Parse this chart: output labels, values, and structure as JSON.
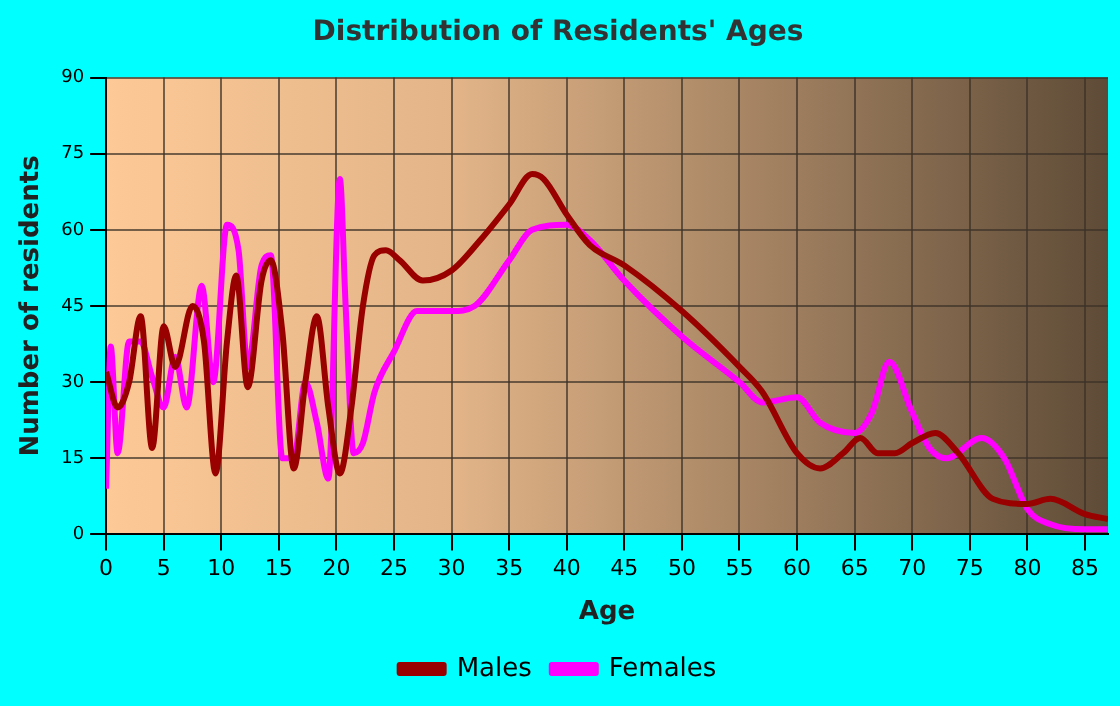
{
  "chart_data": {
    "type": "line",
    "title": "Distribution of Residents' Ages",
    "xlabel": "Age",
    "ylabel": "Number of residents",
    "xlim": [
      0,
      87
    ],
    "xticks": [
      0,
      5,
      10,
      15,
      20,
      25,
      30,
      35,
      40,
      45,
      50,
      55,
      60,
      65,
      70,
      75,
      80,
      85
    ],
    "ylim": [
      0,
      90
    ],
    "yticks": [
      0,
      15,
      30,
      45,
      60,
      75,
      90
    ],
    "grid": true,
    "legend": "bottom",
    "marker": "none",
    "line_style": "solid",
    "series": [
      {
        "name": "Males",
        "color": "#990000",
        "x": [
          0,
          1,
          2,
          3,
          4,
          5,
          6,
          7.5,
          8.5,
          9.5,
          10.5,
          11.3,
          12.3,
          13.5,
          14.3,
          15.3,
          16.3,
          17.3,
          18.3,
          19.3,
          20.3,
          21.3,
          22.3,
          23.3,
          24.3,
          25.5,
          27.5,
          30,
          32.5,
          35,
          37,
          38,
          40,
          42,
          45,
          50,
          55,
          57,
          60,
          62,
          64,
          65.5,
          67,
          68.5,
          70,
          72,
          74,
          77,
          80,
          82,
          85,
          87
        ],
        "values": [
          32,
          25,
          30,
          43,
          17,
          41,
          33,
          45,
          38,
          12,
          38,
          51,
          29,
          50,
          54,
          40,
          13,
          30,
          43,
          25,
          12,
          25,
          45,
          55,
          56,
          54,
          50,
          52,
          58,
          65,
          71,
          70,
          63,
          57,
          53,
          44,
          33,
          28,
          16,
          13,
          16,
          19,
          16,
          16,
          18,
          20,
          16,
          7,
          6,
          7,
          4,
          3
        ]
      },
      {
        "name": "Females",
        "color": "#ff00ff",
        "x": [
          0,
          0.4,
          1,
          2,
          3,
          4,
          5,
          6,
          7,
          8.3,
          9.3,
          10.5,
          11.5,
          12.3,
          13.5,
          14.3,
          15.3,
          16.3,
          17.3,
          18.3,
          19.3,
          20.3,
          20.8,
          21.5,
          22.3,
          23.3,
          25,
          27,
          30,
          32,
          35,
          37,
          40,
          42,
          45,
          50,
          55,
          57,
          60,
          62,
          65,
          66.5,
          68,
          70,
          71.5,
          73,
          76,
          78,
          80,
          82,
          85,
          87
        ],
        "values": [
          9,
          37,
          16,
          38,
          38,
          31,
          25,
          35,
          25,
          49,
          30,
          61,
          56,
          33,
          53,
          55,
          15,
          15,
          30,
          22,
          11,
          70,
          45,
          16,
          18,
          28,
          36,
          44,
          44,
          45,
          54,
          60,
          61,
          58,
          50,
          39,
          30,
          26,
          27,
          22,
          20,
          24,
          34,
          24,
          17,
          15,
          19,
          15,
          5,
          2,
          1,
          1
        ]
      }
    ]
  }
}
